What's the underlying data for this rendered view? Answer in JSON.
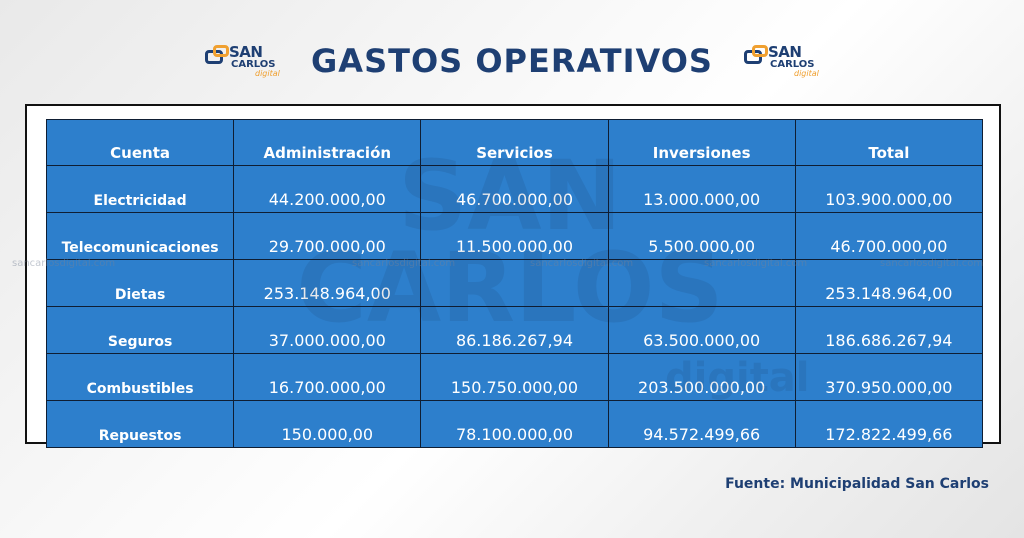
{
  "header": {
    "title": "GASTOS OPERATIVOS",
    "logo": {
      "line1": "SAN",
      "line2": "CARLOS",
      "line3": "digital"
    }
  },
  "watermark": {
    "site": "sancarlosdigital.com",
    "big": "SAN CARLOS",
    "sub": "digital"
  },
  "chart_data": {
    "type": "table",
    "title": "GASTOS OPERATIVOS",
    "columns": [
      "Cuenta",
      "Administración",
      "Servicios",
      "Inversiones",
      "Total"
    ],
    "rows": [
      [
        "Electricidad",
        "44.200.000,00",
        "46.700.000,00",
        "13.000.000,00",
        "103.900.000,00"
      ],
      [
        "Telecomunicaciones",
        "29.700.000,00",
        "11.500.000,00",
        "5.500.000,00",
        "46.700.000,00"
      ],
      [
        "Dietas",
        "253.148.964,00",
        "",
        "",
        "253.148.964,00"
      ],
      [
        "Seguros",
        "37.000.000,00",
        "86.186.267,94",
        "63.500.000,00",
        "186.686.267,94"
      ],
      [
        "Combustibles",
        "16.700.000,00",
        "150.750.000,00",
        "203.500.000,00",
        "370.950.000,00"
      ],
      [
        "Repuestos",
        "150.000,00",
        "78.100.000,00",
        "94.572.499,66",
        "172.822.499,66"
      ]
    ],
    "colors": {
      "cell": "#2d7fcc",
      "border": "#0f1e33",
      "text": "#ffffff",
      "title": "#1e3f73"
    }
  },
  "footer": {
    "source": "Fuente: Municipalidad San Carlos"
  }
}
